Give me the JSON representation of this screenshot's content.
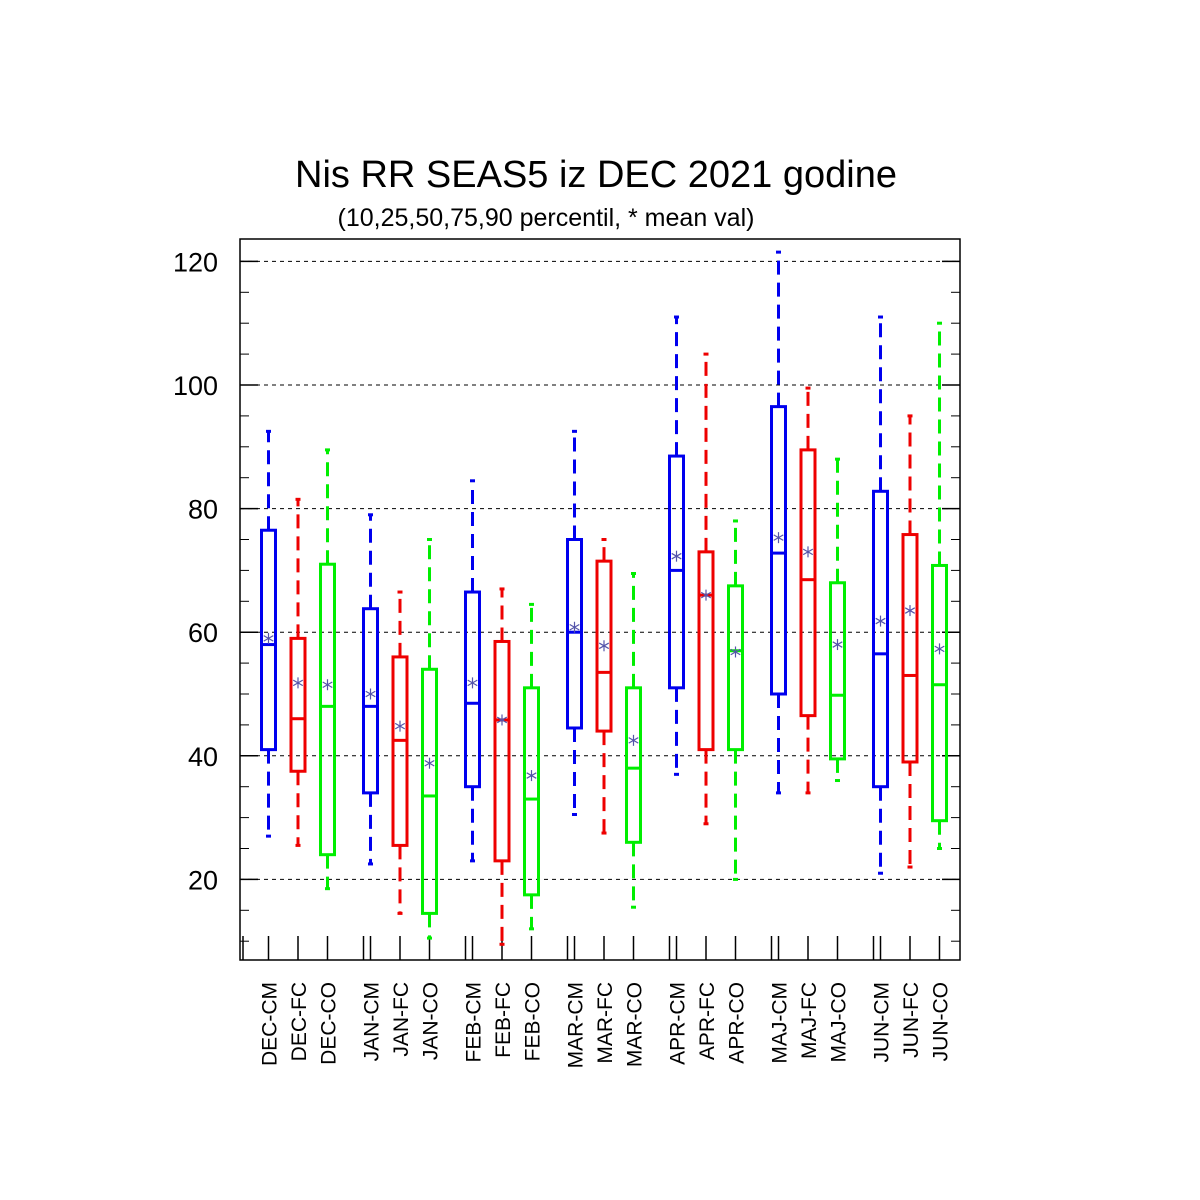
{
  "chart_data": {
    "type": "boxplot",
    "title": "Nis RR SEAS5 iz DEC 2021 godine",
    "subtitle": "(10,25,50,75,90 percentil, * mean val)",
    "ylim": [
      7,
      124
    ],
    "yticks": [
      20,
      40,
      60,
      80,
      100,
      120
    ],
    "grid": "horizontal dashed",
    "series_colors": {
      "CM": "#0000ee",
      "FC": "#ee0000",
      "CO": "#00ee00"
    },
    "mean_marker_color": "#5555aa",
    "boxes": [
      {
        "label": "DEC-CM",
        "p10": 27.0,
        "p25": 41.0,
        "p50": 58.0,
        "p75": 76.5,
        "p90": 92.5,
        "mean": 59.0
      },
      {
        "label": "DEC-FC",
        "p10": 25.5,
        "p25": 37.5,
        "p50": 46.0,
        "p75": 59.0,
        "p90": 81.5,
        "mean": 51.8
      },
      {
        "label": "DEC-CO",
        "p10": 18.5,
        "p25": 24.0,
        "p50": 48.0,
        "p75": 71.0,
        "p90": 89.5,
        "mean": 51.5
      },
      {
        "label": "JAN-CM",
        "p10": 22.5,
        "p25": 34.0,
        "p50": 48.0,
        "p75": 63.8,
        "p90": 79.0,
        "mean": 50.0
      },
      {
        "label": "JAN-FC",
        "p10": 14.5,
        "p25": 25.5,
        "p50": 42.5,
        "p75": 56.0,
        "p90": 66.5,
        "mean": 44.8
      },
      {
        "label": "JAN-CO",
        "p10": 10.5,
        "p25": 14.5,
        "p50": 33.5,
        "p75": 54.0,
        "p90": 75.0,
        "mean": 38.8
      },
      {
        "label": "FEB-CM",
        "p10": 23.0,
        "p25": 35.0,
        "p50": 48.5,
        "p75": 66.5,
        "p90": 84.5,
        "mean": 51.8
      },
      {
        "label": "FEB-FC",
        "p10": 9.5,
        "p25": 23.0,
        "p50": 45.8,
        "p75": 58.5,
        "p90": 67.0,
        "mean": 45.8
      },
      {
        "label": "FEB-CO",
        "p10": 12.0,
        "p25": 17.5,
        "p50": 33.0,
        "p75": 51.0,
        "p90": 64.5,
        "mean": 36.8
      },
      {
        "label": "MAR-CM",
        "p10": 30.5,
        "p25": 44.5,
        "p50": 60.0,
        "p75": 75.0,
        "p90": 92.5,
        "mean": 60.8
      },
      {
        "label": "MAR-FC",
        "p10": 27.5,
        "p25": 44.0,
        "p50": 53.5,
        "p75": 71.5,
        "p90": 75.0,
        "mean": 57.8
      },
      {
        "label": "MAR-CO",
        "p10": 15.5,
        "p25": 26.0,
        "p50": 38.0,
        "p75": 51.0,
        "p90": 69.5,
        "mean": 42.5
      },
      {
        "label": "APR-CM",
        "p10": 37.0,
        "p25": 51.0,
        "p50": 70.0,
        "p75": 88.5,
        "p90": 111.0,
        "mean": 72.3
      },
      {
        "label": "APR-FC",
        "p10": 29.0,
        "p25": 41.0,
        "p50": 66.0,
        "p75": 73.0,
        "p90": 105.0,
        "mean": 66.0
      },
      {
        "label": "APR-CO",
        "p10": 20.0,
        "p25": 41.0,
        "p50": 57.0,
        "p75": 67.5,
        "p90": 78.0,
        "mean": 56.8
      },
      {
        "label": "MAJ-CM",
        "p10": 34.0,
        "p25": 50.0,
        "p50": 72.8,
        "p75": 96.5,
        "p90": 121.5,
        "mean": 75.3
      },
      {
        "label": "MAJ-FC",
        "p10": 34.0,
        "p25": 46.5,
        "p50": 68.5,
        "p75": 89.5,
        "p90": 99.5,
        "mean": 73.0
      },
      {
        "label": "MAJ-CO",
        "p10": 36.0,
        "p25": 39.5,
        "p50": 49.8,
        "p75": 68.0,
        "p90": 88.0,
        "mean": 58.0
      },
      {
        "label": "JUN-CM",
        "p10": 21.0,
        "p25": 35.0,
        "p50": 56.5,
        "p75": 82.8,
        "p90": 111.0,
        "mean": 61.8
      },
      {
        "label": "JUN-FC",
        "p10": 22.0,
        "p25": 39.0,
        "p50": 53.0,
        "p75": 75.8,
        "p90": 95.0,
        "mean": 63.5
      },
      {
        "label": "JUN-CO",
        "p10": 25.0,
        "p25": 29.5,
        "p50": 51.5,
        "p75": 70.8,
        "p90": 110.0,
        "mean": 57.3
      }
    ]
  }
}
